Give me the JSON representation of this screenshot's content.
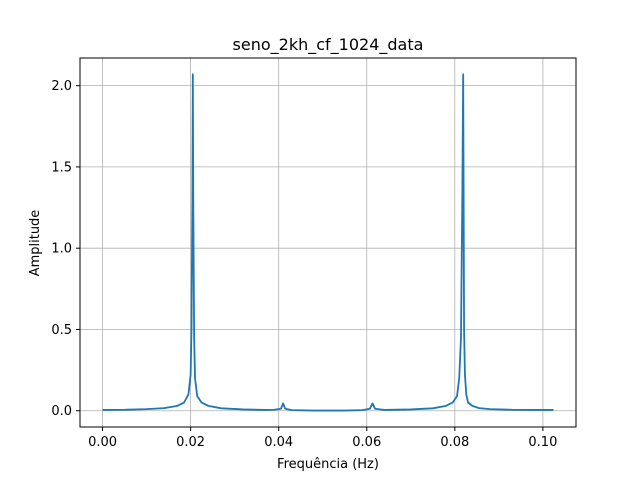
{
  "chart_data": {
    "type": "line",
    "title": "seno_2kh_cf_1024_data",
    "xlabel": "Frequência (Hz)",
    "ylabel": "Amplitude",
    "xlim": [
      -0.00512,
      0.10752
    ],
    "ylim": [
      -0.1,
      2.17
    ],
    "xticks": [
      0.0,
      0.02,
      0.04,
      0.06,
      0.08,
      0.1
    ],
    "xtick_labels": [
      "0.00",
      "0.02",
      "0.04",
      "0.06",
      "0.08",
      "0.10"
    ],
    "yticks": [
      0.0,
      0.5,
      1.0,
      1.5,
      2.0
    ],
    "ytick_labels": [
      "0.0",
      "0.5",
      "1.0",
      "1.5",
      "2.0"
    ],
    "grid": true,
    "color": "#1f77b4",
    "series": [
      {
        "x": [
          0.0,
          0.005,
          0.01,
          0.014,
          0.017,
          0.0185,
          0.0195,
          0.02,
          0.0202,
          0.0204,
          0.0205,
          0.0206,
          0.0208,
          0.021,
          0.0215,
          0.0225,
          0.024,
          0.027,
          0.032,
          0.037,
          0.039,
          0.0405,
          0.041,
          0.0415,
          0.043,
          0.048,
          0.055,
          0.059,
          0.0607,
          0.0613,
          0.0619,
          0.064,
          0.07,
          0.075,
          0.078,
          0.0795,
          0.0805,
          0.081,
          0.0814,
          0.0817,
          0.0819,
          0.082,
          0.0821,
          0.0823,
          0.0826,
          0.083,
          0.084,
          0.0855,
          0.088,
          0.093,
          0.098,
          0.1024
        ],
        "y": [
          0.005,
          0.006,
          0.01,
          0.016,
          0.03,
          0.05,
          0.1,
          0.22,
          0.5,
          1.3,
          2.07,
          1.3,
          0.45,
          0.2,
          0.09,
          0.05,
          0.03,
          0.015,
          0.008,
          0.005,
          0.006,
          0.012,
          0.045,
          0.012,
          0.004,
          0.001,
          0.001,
          0.004,
          0.012,
          0.045,
          0.012,
          0.005,
          0.008,
          0.015,
          0.03,
          0.05,
          0.09,
          0.2,
          0.45,
          1.3,
          2.07,
          1.3,
          0.5,
          0.22,
          0.1,
          0.05,
          0.03,
          0.016,
          0.01,
          0.006,
          0.005,
          0.005
        ]
      }
    ]
  }
}
